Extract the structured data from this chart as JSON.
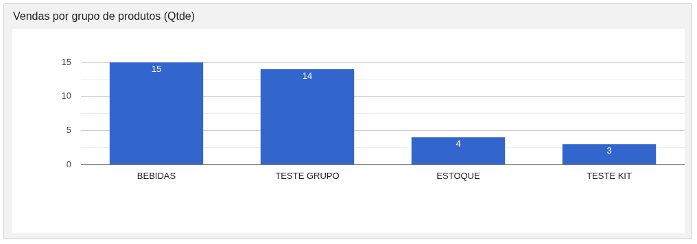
{
  "chart_data": {
    "type": "bar",
    "title": "Vendas por grupo de produtos (Qtde)",
    "categories": [
      "BEBIDAS",
      "TESTE GRUPO",
      "ESTOQUE",
      "TESTE KIT"
    ],
    "values": [
      15,
      14,
      4,
      3
    ],
    "color": "#3366cc",
    "ylim": [
      0,
      15
    ],
    "yticks": [
      0,
      {
        "value": 2.5,
        "label": null
      },
      5,
      {
        "value": 7.5,
        "label": null
      },
      10,
      {
        "value": 12.5,
        "label": null
      },
      15
    ],
    "grid": "y",
    "legend": false,
    "data_labels": true
  }
}
